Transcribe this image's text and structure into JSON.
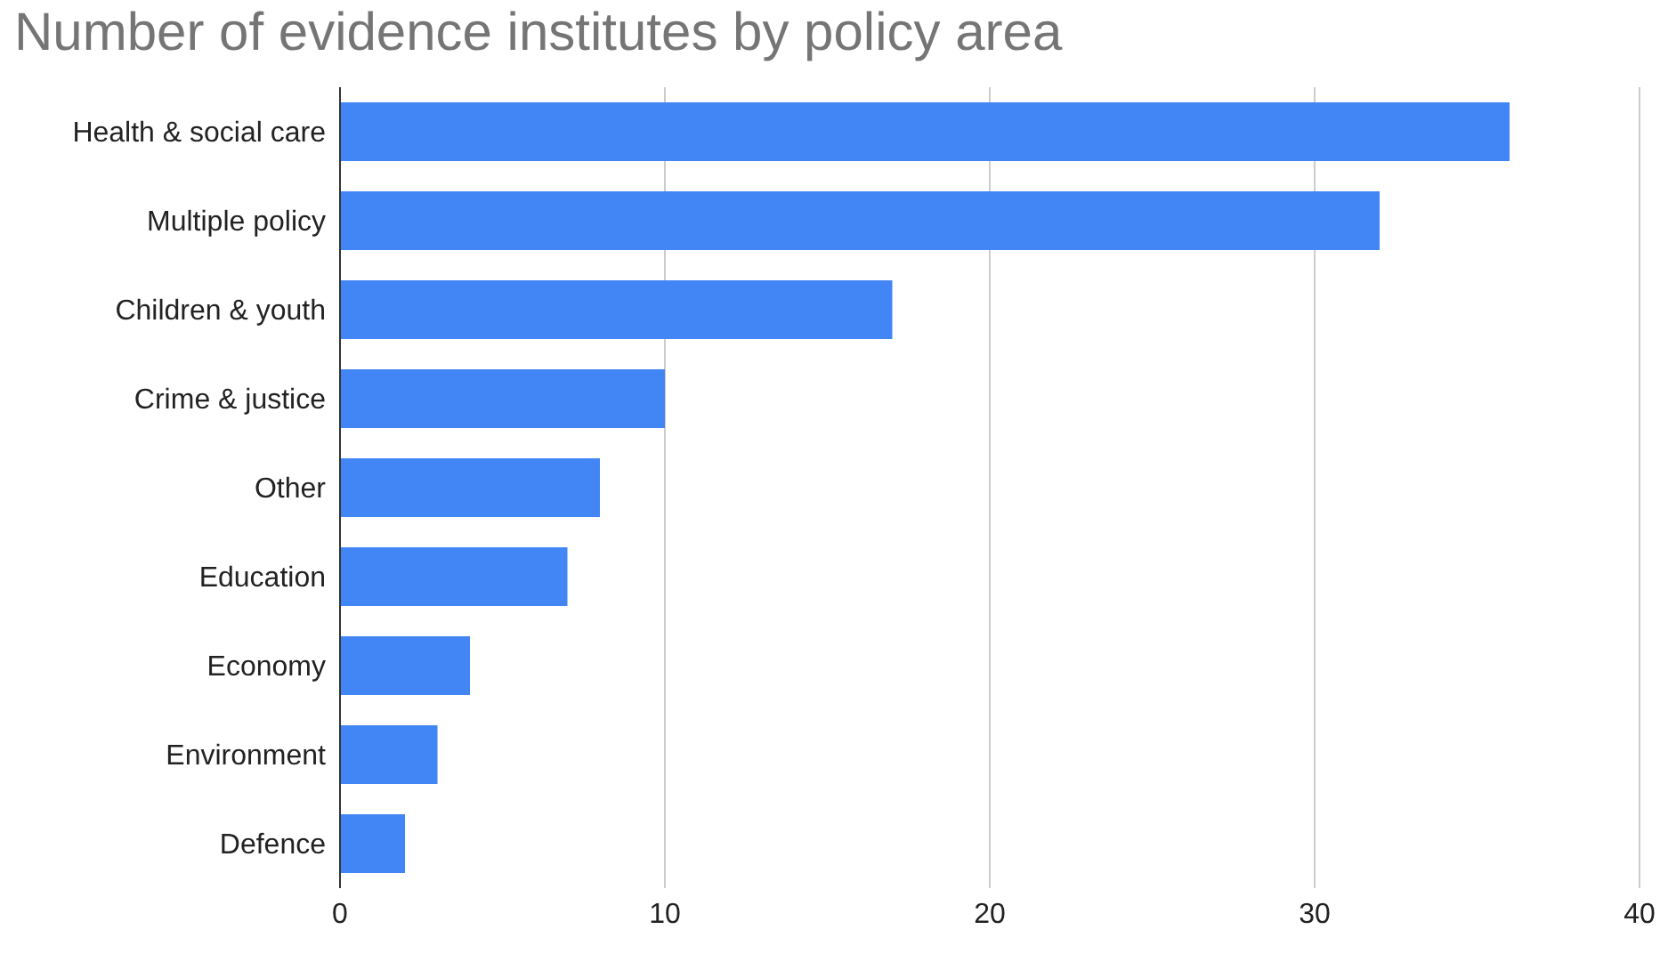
{
  "chart_data": {
    "type": "bar",
    "orientation": "horizontal",
    "title": "Number of evidence institutes by policy area",
    "categories": [
      "Health & social care",
      "Multiple policy",
      "Children & youth",
      "Crime & justice",
      "Other",
      "Education",
      "Economy",
      "Environment",
      "Defence"
    ],
    "values": [
      36,
      32,
      17,
      10,
      8,
      7,
      4,
      3,
      2
    ],
    "color": "#4285f4",
    "xlim": [
      0,
      40
    ],
    "xticks": [
      0,
      10,
      20,
      30,
      40
    ],
    "grid": "x"
  }
}
